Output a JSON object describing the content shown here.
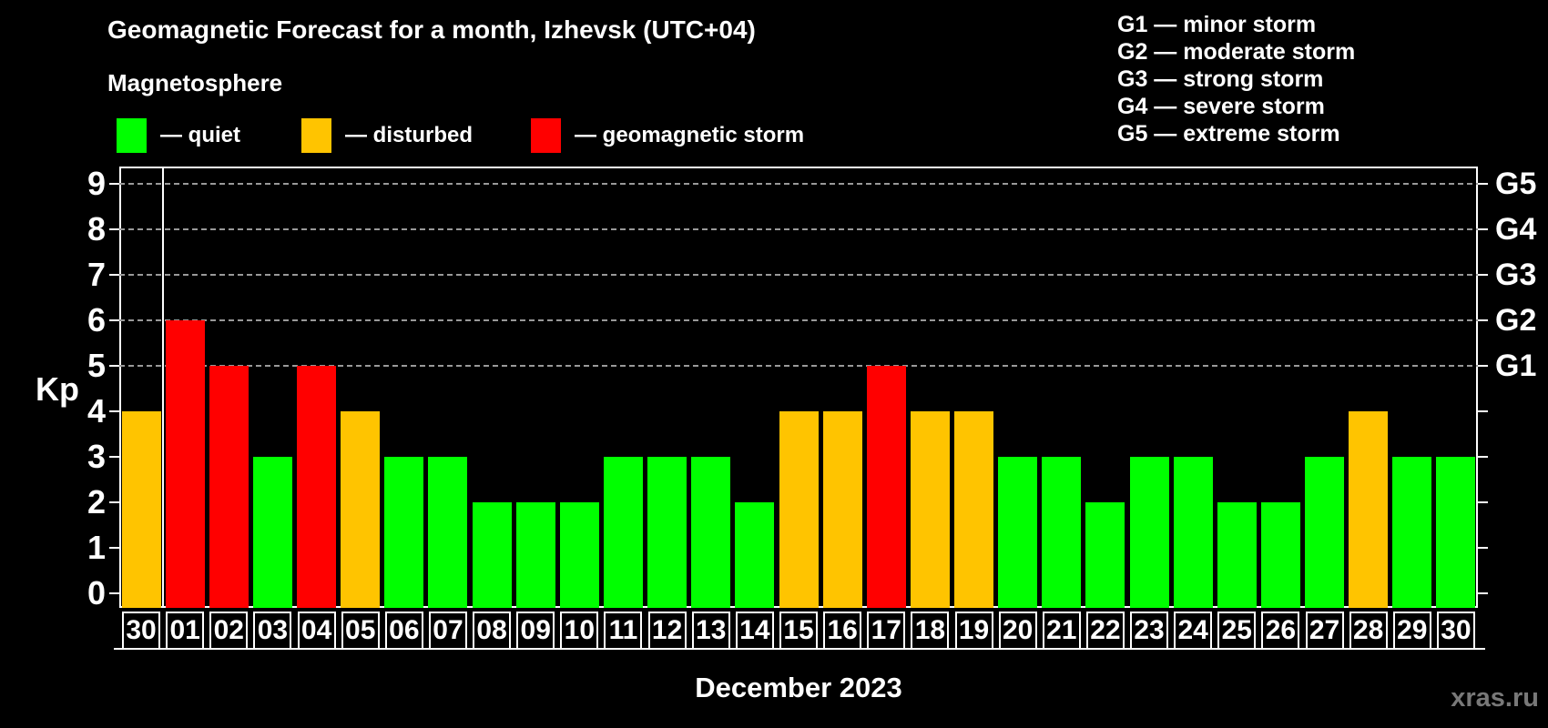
{
  "title": "Geomagnetic Forecast for a month, Izhevsk (UTC+04)",
  "subtitle": "Magnetosphere",
  "legend": {
    "items": [
      {
        "key": "quiet",
        "label": "— quiet",
        "color": "#00ff00"
      },
      {
        "key": "disturbed",
        "label": "— disturbed",
        "color": "#ffc400"
      },
      {
        "key": "storm",
        "label": "— geomagnetic storm",
        "color": "#ff0000"
      }
    ]
  },
  "g_legend": {
    "items": [
      "G1 — minor storm",
      "G2 — moderate storm",
      "G3 — strong storm",
      "G4 — severe storm",
      "G5 — extreme storm"
    ]
  },
  "footer": {
    "month_label": "December 2023",
    "watermark": "xras.ru"
  },
  "chart_data": {
    "type": "bar",
    "title": "Geomagnetic Forecast for a month, Izhevsk (UTC+04)",
    "ylabel": "Kp",
    "xlabel": "December 2023",
    "categories": [
      "30",
      "01",
      "02",
      "03",
      "04",
      "05",
      "06",
      "07",
      "08",
      "09",
      "10",
      "11",
      "12",
      "13",
      "14",
      "15",
      "16",
      "17",
      "18",
      "19",
      "20",
      "21",
      "22",
      "23",
      "24",
      "25",
      "26",
      "27",
      "28",
      "29",
      "30"
    ],
    "values": [
      4,
      6,
      5,
      3,
      5,
      4,
      3,
      3,
      2,
      2,
      2,
      3,
      3,
      3,
      2,
      4,
      4,
      5,
      4,
      4,
      3,
      3,
      2,
      3,
      3,
      2,
      2,
      3,
      4,
      3,
      3
    ],
    "bar_levels": [
      "disturbed",
      "storm",
      "storm",
      "quiet",
      "storm",
      "disturbed",
      "quiet",
      "quiet",
      "quiet",
      "quiet",
      "quiet",
      "quiet",
      "quiet",
      "quiet",
      "quiet",
      "disturbed",
      "disturbed",
      "storm",
      "disturbed",
      "disturbed",
      "quiet",
      "quiet",
      "quiet",
      "quiet",
      "quiet",
      "quiet",
      "quiet",
      "quiet",
      "disturbed",
      "quiet",
      "quiet"
    ],
    "level_colors": {
      "quiet": "#00ff00",
      "disturbed": "#ffc400",
      "storm": "#ff0000"
    },
    "ylim": [
      0,
      9.4
    ],
    "yticks": [
      0,
      1,
      2,
      3,
      4,
      5,
      6,
      7,
      8,
      9
    ],
    "gridlines_at_kp": [
      5,
      6,
      7,
      8,
      9
    ],
    "right_axis": {
      "labels": [
        "G1",
        "G2",
        "G3",
        "G4",
        "G5"
      ],
      "at_kp": [
        5,
        6,
        7,
        8,
        9
      ]
    },
    "separator_after_index": 0,
    "grid_color": "#999999",
    "axis_color": "#ffffff",
    "background": "#000000",
    "legend_position": "top-left",
    "grid": "dashed horizontal at storm levels only"
  }
}
